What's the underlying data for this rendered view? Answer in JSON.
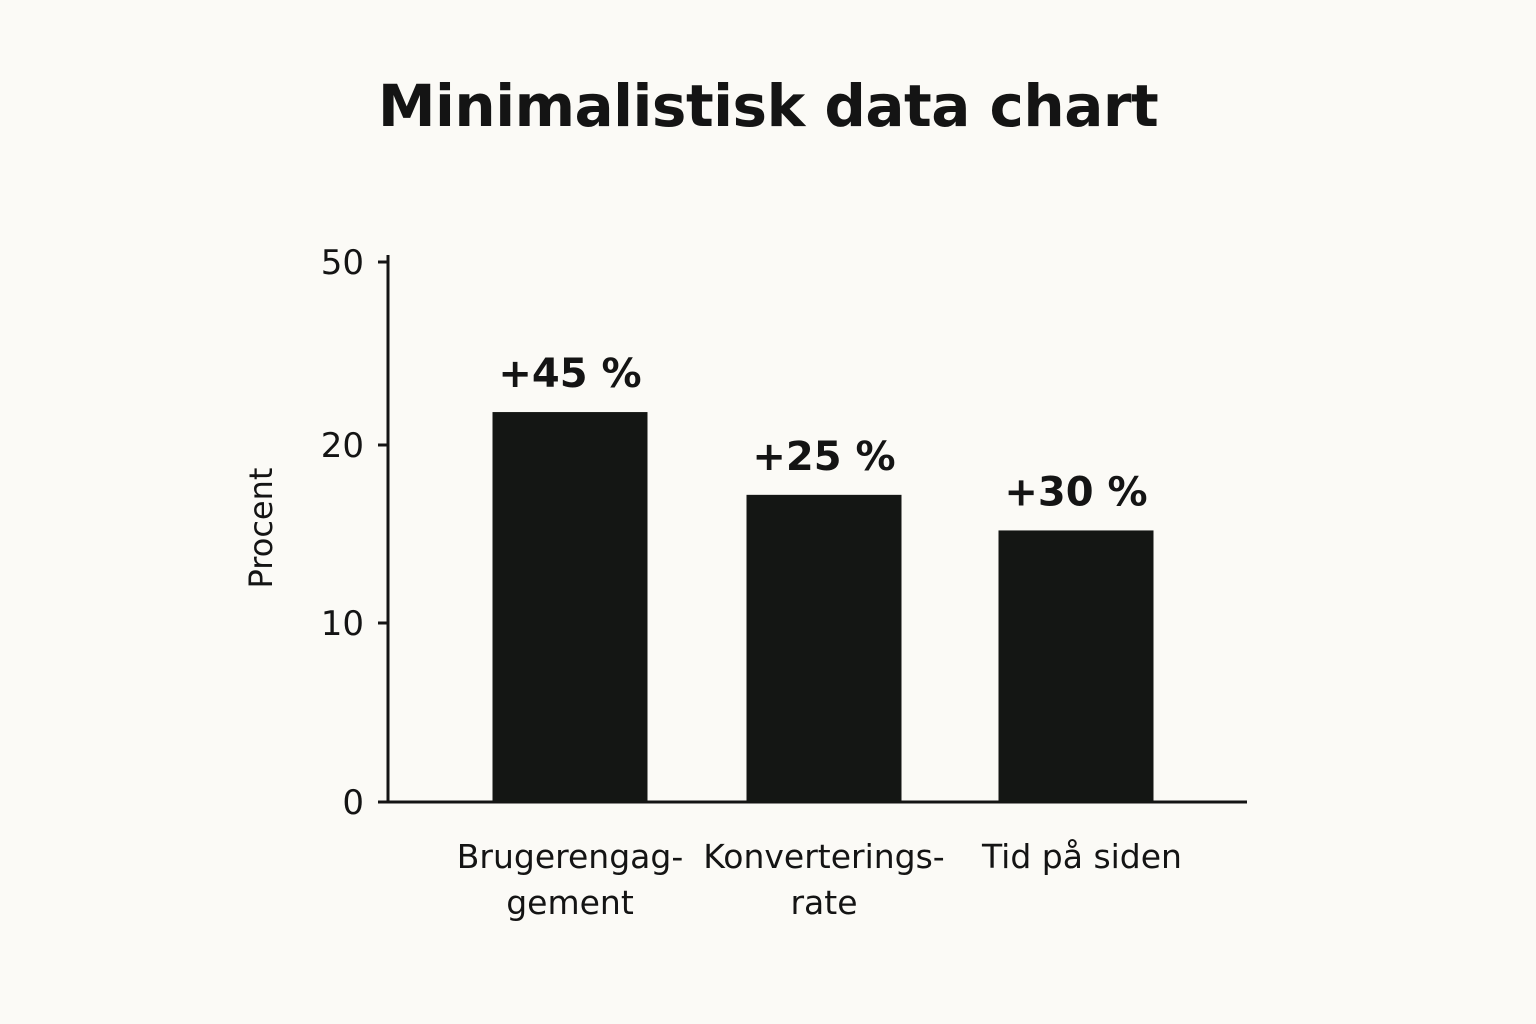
{
  "colors": {
    "background": "#fbfaf6",
    "bar": "#141614",
    "axis": "#141414",
    "text": "#141414"
  },
  "chart_data": {
    "type": "bar",
    "title": "Minimalistisk data chart",
    "xlabel": "",
    "ylabel": "Procent",
    "categories": [
      [
        "Brugerengag-",
        "gement"
      ],
      [
        "Konverterings-",
        "rate"
      ],
      [
        "Tid på siden"
      ]
    ],
    "values": [
      25.4,
      17.2,
      15.2
    ],
    "data_labels": [
      "+45 %",
      "+25 %",
      "+30 %"
    ],
    "y_ticks": [
      {
        "value": 0,
        "label": "0"
      },
      {
        "value": 10,
        "label": "10"
      },
      {
        "value": 20,
        "label": "20"
      },
      {
        "value": 50,
        "label": "50"
      }
    ],
    "grid": false,
    "legend": "none"
  }
}
